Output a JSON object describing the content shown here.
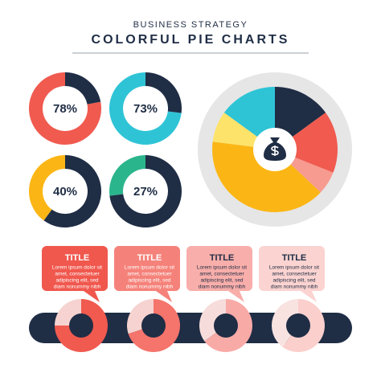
{
  "header": {
    "subtitle": "BUSINESS STRATEGY",
    "title": "COLORFUL PIE CHARTS"
  },
  "chart_data": [
    {
      "type": "donut",
      "center_label": "78%",
      "values": [
        78,
        22
      ],
      "colors": [
        "#f05a4f",
        "#1f2d45"
      ]
    },
    {
      "type": "donut",
      "center_label": "73%",
      "values": [
        73,
        27
      ],
      "colors": [
        "#2ec4d6",
        "#1f2d45"
      ]
    },
    {
      "type": "donut",
      "center_label": "40%",
      "values": [
        40,
        60
      ],
      "colors": [
        "#fbb616",
        "#1f2d45"
      ]
    },
    {
      "type": "donut",
      "center_label": "27%",
      "values": [
        27,
        73
      ],
      "colors": [
        "#2bb58c",
        "#1f2d45"
      ]
    },
    {
      "type": "pie",
      "values": [
        15,
        16,
        6,
        40,
        8,
        15
      ],
      "colors": [
        "#1f2d45",
        "#f05a4f",
        "#f79a8f",
        "#fbb616",
        "#fde36a",
        "#2ec4d6"
      ]
    },
    {
      "type": "pie",
      "values": [
        75,
        25
      ],
      "colors": [
        "#f05a4f",
        "#f6d3d0"
      ]
    },
    {
      "type": "pie",
      "values": [
        70,
        30
      ],
      "colors": [
        "#f5746b",
        "#f6d3d0"
      ]
    },
    {
      "type": "pie",
      "values": [
        65,
        35
      ],
      "colors": [
        "#f8aaa6",
        "#f6dddb"
      ]
    },
    {
      "type": "pie",
      "values": [
        60,
        40
      ],
      "colors": [
        "#fbcfcc",
        "#f8e3e1"
      ]
    }
  ],
  "callouts": [
    {
      "title": "TITLE",
      "color": "#f0584e",
      "lines": [
        "Lorem ipsum dolor sit",
        "amet, consectetuer",
        "adipiscing elit, sed",
        "diam nonummy nibh"
      ]
    },
    {
      "title": "TITLE",
      "color": "#f5827a",
      "lines": [
        "Lorem ipsum dolor sit",
        "amet, consectetuer",
        "adipiscing elit, sed",
        "diam nonummy nibh"
      ]
    },
    {
      "title": "TITLE",
      "color": "#f8aeaa",
      "lines": [
        "Lorem ipsum dolor sit",
        "amet, consectetuer",
        "adipiscing elit, sed",
        "diam nonummy nibh"
      ]
    },
    {
      "title": "TITLE",
      "color": "#fbd3d0",
      "lines": [
        "Lorem ipsum dolor sit",
        "amet, consectetuer",
        "adipiscing elit, sed",
        "diam nonummy nibh"
      ]
    }
  ]
}
